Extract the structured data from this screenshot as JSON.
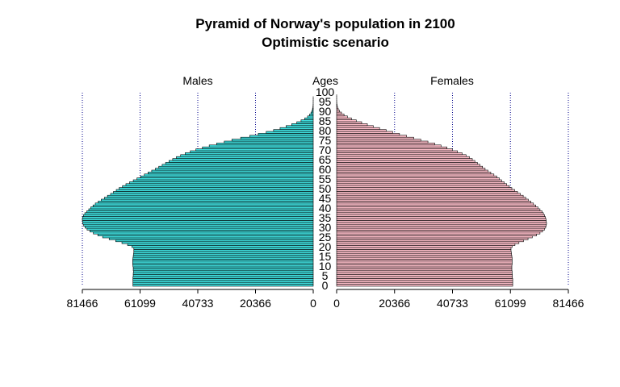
{
  "chart_data": {
    "type": "bar",
    "title": "Pyramid of Norway's population in 2100",
    "subtitle": "Optimistic scenario",
    "left_label": "Males",
    "center_label": "Ages",
    "right_label": "Females",
    "x_ticks": [
      0,
      20366,
      40733,
      61099,
      81466
    ],
    "xlim": [
      0,
      81466
    ],
    "grid": true,
    "age_labels": [
      0,
      5,
      10,
      15,
      20,
      25,
      30,
      35,
      40,
      45,
      50,
      55,
      60,
      65,
      70,
      75,
      80,
      85,
      90,
      95,
      100
    ],
    "ages": [
      0,
      1,
      2,
      3,
      4,
      5,
      6,
      7,
      8,
      9,
      10,
      11,
      12,
      13,
      14,
      15,
      16,
      17,
      18,
      19,
      20,
      21,
      22,
      23,
      24,
      25,
      26,
      27,
      28,
      29,
      30,
      31,
      32,
      33,
      34,
      35,
      36,
      37,
      38,
      39,
      40,
      41,
      42,
      43,
      44,
      45,
      46,
      47,
      48,
      49,
      50,
      51,
      52,
      53,
      54,
      55,
      56,
      57,
      58,
      59,
      60,
      61,
      62,
      63,
      64,
      65,
      66,
      67,
      68,
      69,
      70,
      71,
      72,
      73,
      74,
      75,
      76,
      77,
      78,
      79,
      80,
      81,
      82,
      83,
      84,
      85,
      86,
      87,
      88,
      89,
      90,
      91,
      92,
      93,
      94,
      95,
      96,
      97,
      98,
      99,
      100
    ],
    "series": [
      {
        "name": "Males",
        "color": "#40e0e0",
        "values": [
          63600,
          63600,
          63600,
          63600,
          63600,
          63500,
          63500,
          63400,
          63500,
          63500,
          63600,
          63700,
          63700,
          63700,
          63600,
          63500,
          63400,
          63300,
          63300,
          63300,
          64000,
          65500,
          67500,
          69700,
          72000,
          74300,
          76000,
          77600,
          78800,
          79800,
          80500,
          81000,
          81300,
          81400,
          81466,
          81400,
          81100,
          80600,
          79900,
          79200,
          78500,
          77700,
          76900,
          75900,
          74800,
          73700,
          72600,
          71500,
          70500,
          69500,
          68500,
          67300,
          66100,
          64800,
          63500,
          62200,
          60900,
          59600,
          58300,
          57000,
          55700,
          54500,
          53300,
          52100,
          50900,
          49600,
          48300,
          46800,
          45200,
          43400,
          41400,
          39100,
          36700,
          34100,
          31400,
          28700,
          25600,
          22400,
          19400,
          16600,
          14000,
          11700,
          9600,
          7600,
          5800,
          4300,
          3000,
          2000,
          1300,
          800,
          450,
          230,
          110,
          50,
          20,
          8,
          3,
          1,
          0,
          0,
          0
        ]
      },
      {
        "name": "Females",
        "color": "#ffc0cb",
        "values": [
          61900,
          61900,
          61900,
          61900,
          61800,
          61800,
          61700,
          61700,
          61600,
          61600,
          61600,
          61700,
          61700,
          61700,
          61700,
          61600,
          61500,
          61400,
          61300,
          61300,
          61700,
          62700,
          64100,
          65700,
          67300,
          68800,
          70300,
          71500,
          72400,
          73100,
          73500,
          73700,
          73800,
          73700,
          73600,
          73400,
          73100,
          72700,
          72200,
          71500,
          70800,
          70000,
          69200,
          68300,
          67400,
          66500,
          65600,
          64600,
          63600,
          62600,
          61600,
          60700,
          59800,
          58900,
          58000,
          57200,
          56300,
          55300,
          54200,
          53200,
          52200,
          51300,
          50400,
          49500,
          48600,
          47700,
          46700,
          45500,
          44100,
          42500,
          40700,
          38800,
          36700,
          34500,
          32100,
          29600,
          27100,
          24600,
          22100,
          19700,
          17400,
          15100,
          12900,
          10800,
          8800,
          6900,
          5200,
          3800,
          2600,
          1700,
          1000,
          560,
          290,
          140,
          60,
          25,
          10,
          3,
          1,
          0,
          0
        ]
      }
    ]
  }
}
